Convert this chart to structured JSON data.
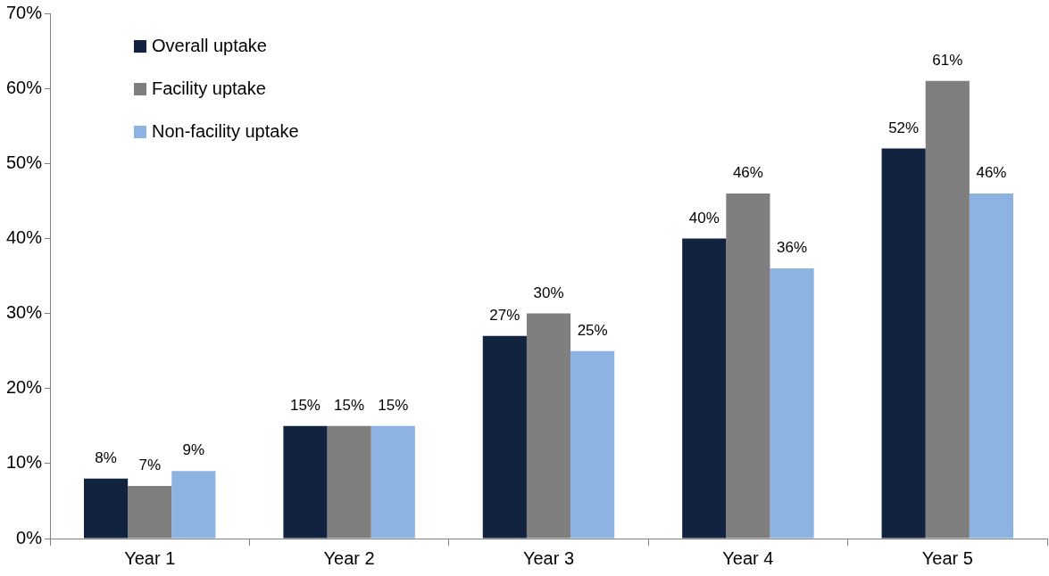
{
  "chart_data": {
    "type": "bar",
    "categories": [
      "Year 1",
      "Year 2",
      "Year 3",
      "Year 4",
      "Year 5"
    ],
    "series": [
      {
        "name": "Overall uptake",
        "color": "#12233f",
        "values": [
          8,
          15,
          27,
          40,
          52
        ],
        "value_labels": [
          "8%",
          "15%",
          "27%",
          "40%",
          "52%"
        ]
      },
      {
        "name": "Facility uptake",
        "color": "#7f7f7f",
        "values": [
          7,
          15,
          30,
          46,
          61
        ],
        "value_labels": [
          "7%",
          "15%",
          "30%",
          "46%",
          "61%"
        ]
      },
      {
        "name": "Non-facility uptake",
        "color": "#8db3e2",
        "values": [
          9,
          15,
          25,
          36,
          46
        ],
        "value_labels": [
          "9%",
          "15%",
          "25%",
          "36%",
          "46%"
        ]
      }
    ],
    "ylim": [
      0,
      70
    ],
    "yticks": [
      {
        "value": 0,
        "label": "0%"
      },
      {
        "value": 10,
        "label": "10%"
      },
      {
        "value": 20,
        "label": "20%"
      },
      {
        "value": 30,
        "label": "30%"
      },
      {
        "value": 40,
        "label": "40%"
      },
      {
        "value": 50,
        "label": "50%"
      },
      {
        "value": 60,
        "label": "60%"
      },
      {
        "value": 70,
        "label": "70%"
      }
    ],
    "grid": false,
    "legend": "top left"
  }
}
